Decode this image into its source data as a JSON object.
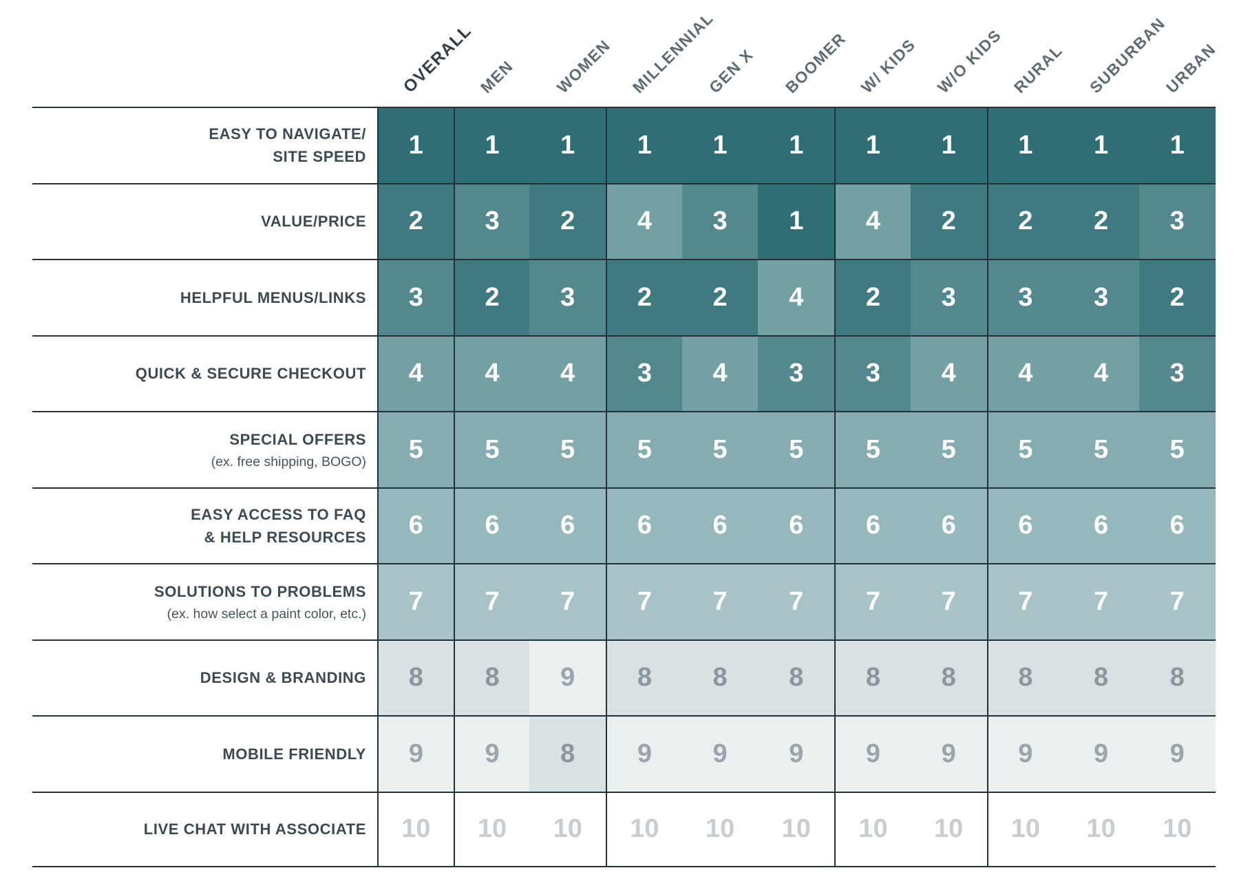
{
  "chart_data": {
    "type": "heatmap",
    "title": "",
    "columns": [
      "OVERALL",
      "MEN",
      "WOMEN",
      "MILLENNIAL",
      "GEN X",
      "BOOMER",
      "W/ KIDS",
      "W/O KIDS",
      "RURAL",
      "SUBURBAN",
      "URBAN"
    ],
    "rows": [
      {
        "label": "EASY TO NAVIGATE/\nSITE SPEED",
        "note": "",
        "values": [
          1,
          1,
          1,
          1,
          1,
          1,
          1,
          1,
          1,
          1,
          1
        ]
      },
      {
        "label": "VALUE/PRICE",
        "note": "",
        "values": [
          2,
          3,
          2,
          4,
          3,
          1,
          4,
          2,
          2,
          2,
          3
        ]
      },
      {
        "label": "HELPFUL MENUS/LINKS",
        "note": "",
        "values": [
          3,
          2,
          3,
          2,
          2,
          4,
          2,
          3,
          3,
          3,
          2
        ]
      },
      {
        "label": "QUICK & SECURE CHECKOUT",
        "note": "",
        "values": [
          4,
          4,
          4,
          3,
          4,
          3,
          3,
          4,
          4,
          4,
          3
        ]
      },
      {
        "label": "SPECIAL OFFERS",
        "note": "(ex. free shipping, BOGO)",
        "values": [
          5,
          5,
          5,
          5,
          5,
          5,
          5,
          5,
          5,
          5,
          5
        ]
      },
      {
        "label": "EASY ACCESS TO FAQ\n& HELP RESOURCES",
        "note": "",
        "values": [
          6,
          6,
          6,
          6,
          6,
          6,
          6,
          6,
          6,
          6,
          6
        ]
      },
      {
        "label": "SOLUTIONS TO PROBLEMS",
        "note": "(ex. how select a paint color, etc.)",
        "values": [
          7,
          7,
          7,
          7,
          7,
          7,
          7,
          7,
          7,
          7,
          7
        ]
      },
      {
        "label": "DESIGN & BRANDING",
        "note": "",
        "values": [
          8,
          8,
          9,
          8,
          8,
          8,
          8,
          8,
          8,
          8,
          8
        ]
      },
      {
        "label": "MOBILE FRIENDLY",
        "note": "",
        "values": [
          9,
          9,
          8,
          9,
          9,
          9,
          9,
          9,
          9,
          9,
          9
        ]
      },
      {
        "label": "LIVE CHAT WITH ASSOCIATE",
        "note": "",
        "values": [
          10,
          10,
          10,
          10,
          10,
          10,
          10,
          10,
          10,
          10,
          10
        ]
      }
    ],
    "value_range": [
      1,
      10
    ],
    "legend": null,
    "grid": "row and column-group rules"
  },
  "style": {
    "emphasized_column": "OVERALL",
    "group_start_columns": [
      0,
      1,
      3,
      6,
      8
    ],
    "line_color": "#233239",
    "rank_colors": {
      "1": {
        "bg": "#2F6E75",
        "fg": "#FFFFFF"
      },
      "2": {
        "bg": "#3F7A81",
        "fg": "#FFFFFF"
      },
      "3": {
        "bg": "#54888F",
        "fg": "#FFFFFF"
      },
      "4": {
        "bg": "#72A0A4",
        "fg": "#FFFFFF"
      },
      "5": {
        "bg": "#85ADB1",
        "fg": "#FFFFFF"
      },
      "6": {
        "bg": "#94B8BB",
        "fg": "#FFFFFF"
      },
      "7": {
        "bg": "#A7C3C5",
        "fg": "#FFFFFF"
      },
      "8": {
        "bg": "#D8E2E3",
        "fg": "#8B979D"
      },
      "9": {
        "bg": "#EAEFF0",
        "fg": "#9AA6AB"
      },
      "10": {
        "bg": "#FFFFFF",
        "fg": "#C7CDD0"
      }
    }
  }
}
